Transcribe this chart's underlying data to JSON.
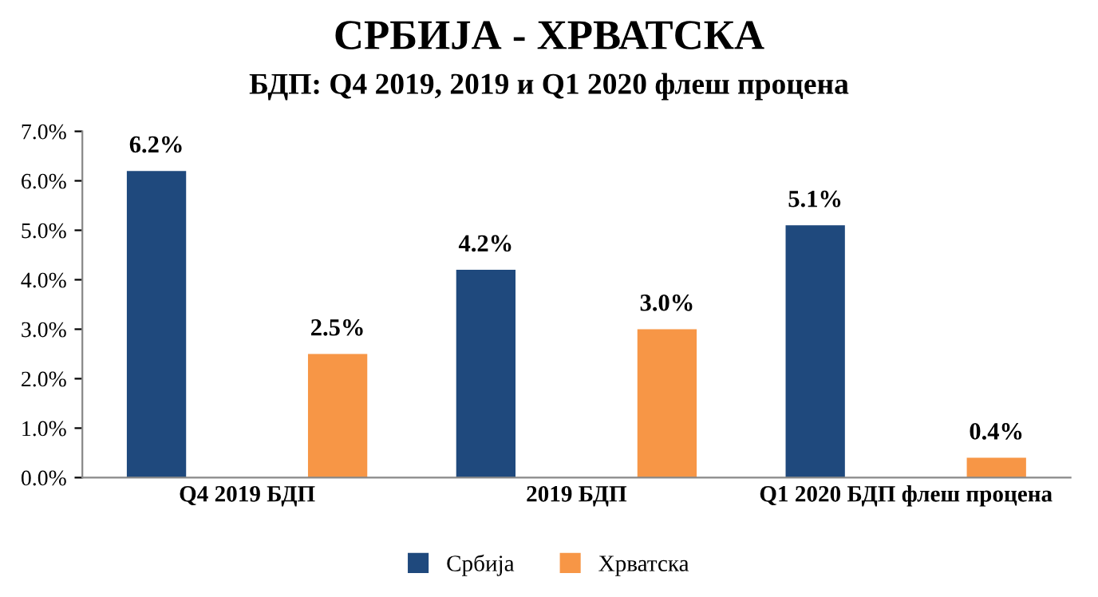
{
  "chart_data": {
    "type": "bar",
    "title": "СРБИЈА - ХРВАТСКА",
    "subtitle": "БДП: Q4 2019, 2019 и Q1 2020 флеш процена",
    "categories": [
      "Q4 2019 БДП",
      "2019 БДП",
      "Q1 2020 БДП флеш процена"
    ],
    "series": [
      {
        "name": "Србија",
        "color": "#1f497d",
        "values": [
          6.2,
          4.2,
          5.1
        ],
        "value_labels": [
          "6.2%",
          "4.2%",
          "5.1%"
        ]
      },
      {
        "name": "Хрватска",
        "color": "#f79646",
        "values": [
          2.5,
          3.0,
          0.4
        ],
        "value_labels": [
          "2.5%",
          "3.0%",
          "0.4%"
        ]
      }
    ],
    "ylim": [
      0,
      7
    ],
    "yticks": [
      {
        "value": 0,
        "label": "0.0%"
      },
      {
        "value": 1,
        "label": "1.0%"
      },
      {
        "value": 2,
        "label": "2.0%"
      },
      {
        "value": 3,
        "label": "3.0%"
      },
      {
        "value": 4,
        "label": "4.0%"
      },
      {
        "value": 5,
        "label": "5.0%"
      },
      {
        "value": 6,
        "label": "6.0%"
      },
      {
        "value": 7,
        "label": "7.0%"
      }
    ],
    "grid": false,
    "legend": "bottom"
  }
}
